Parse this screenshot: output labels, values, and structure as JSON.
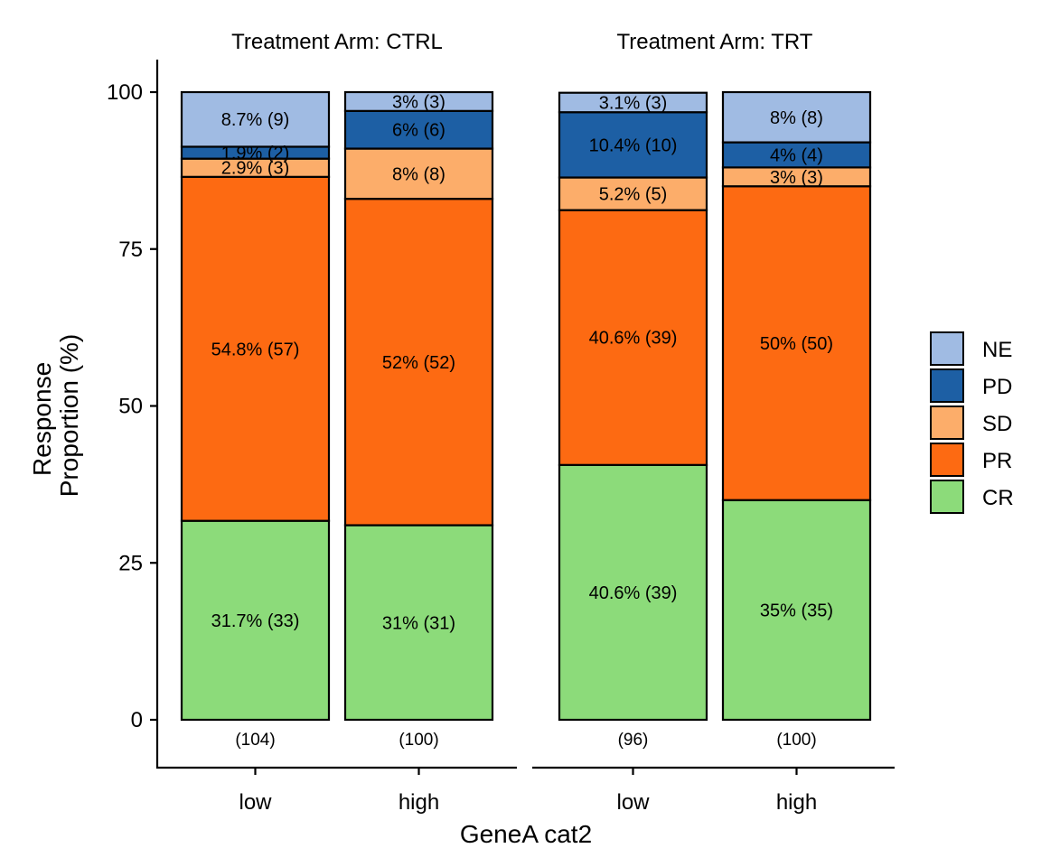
{
  "chart_data": {
    "type": "bar",
    "stacked": true,
    "xlabel": "GeneA cat2",
    "ylabel_lines": [
      "Response",
      "Proportion (%)"
    ],
    "ylim": [
      0,
      100
    ],
    "yticks": [
      0,
      25,
      50,
      75,
      100
    ],
    "legend_position": "right",
    "categories_order": [
      "CR",
      "PR",
      "SD",
      "PD",
      "NE"
    ],
    "legend_order": [
      "NE",
      "PD",
      "SD",
      "PR",
      "CR"
    ],
    "colors": {
      "CR": "#8cdb7a",
      "PR": "#fd6a12",
      "SD": "#fcad6a",
      "PD": "#1d5fa4",
      "NE": "#a0bbe3"
    },
    "facets": [
      {
        "title": "Treatment Arm: CTRL",
        "bars": [
          {
            "x": "low",
            "n_label": "(104)",
            "segments": [
              {
                "cat": "CR",
                "value": 31.7,
                "label": "31.7% (33)"
              },
              {
                "cat": "PR",
                "value": 54.8,
                "label": "54.8% (57)"
              },
              {
                "cat": "SD",
                "value": 2.9,
                "label": "2.9% (3)"
              },
              {
                "cat": "PD",
                "value": 1.9,
                "label": "1.9% (2)"
              },
              {
                "cat": "NE",
                "value": 8.7,
                "label": "8.7% (9)"
              }
            ]
          },
          {
            "x": "high",
            "n_label": "(100)",
            "segments": [
              {
                "cat": "CR",
                "value": 31,
                "label": "31% (31)"
              },
              {
                "cat": "PR",
                "value": 52,
                "label": "52% (52)"
              },
              {
                "cat": "SD",
                "value": 8,
                "label": "8% (8)"
              },
              {
                "cat": "PD",
                "value": 6,
                "label": "6% (6)"
              },
              {
                "cat": "NE",
                "value": 3,
                "label": "3% (3)"
              }
            ]
          }
        ]
      },
      {
        "title": "Treatment Arm: TRT",
        "bars": [
          {
            "x": "low",
            "n_label": "(96)",
            "segments": [
              {
                "cat": "CR",
                "value": 40.6,
                "label": "40.6% (39)"
              },
              {
                "cat": "PR",
                "value": 40.6,
                "label": "40.6% (39)"
              },
              {
                "cat": "SD",
                "value": 5.2,
                "label": "5.2% (5)"
              },
              {
                "cat": "PD",
                "value": 10.4,
                "label": "10.4% (10)"
              },
              {
                "cat": "NE",
                "value": 3.1,
                "label": "3.1% (3)"
              }
            ]
          },
          {
            "x": "high",
            "n_label": "(100)",
            "segments": [
              {
                "cat": "CR",
                "value": 35,
                "label": "35% (35)"
              },
              {
                "cat": "PR",
                "value": 50,
                "label": "50% (50)"
              },
              {
                "cat": "SD",
                "value": 3,
                "label": "3% (3)"
              },
              {
                "cat": "PD",
                "value": 4,
                "label": "4% (4)"
              },
              {
                "cat": "NE",
                "value": 8,
                "label": "8% (8)"
              }
            ]
          }
        ]
      }
    ]
  }
}
